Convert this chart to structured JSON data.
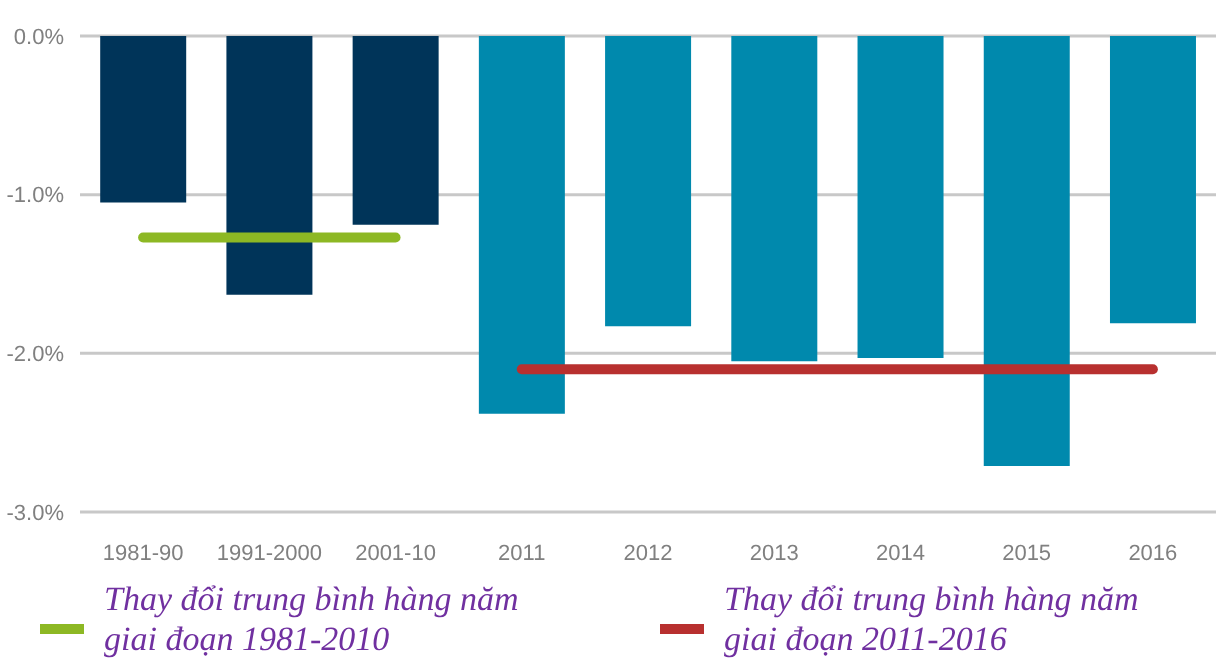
{
  "chart_data": {
    "type": "bar",
    "categories": [
      "1981-90",
      "1991-2000",
      "2001-10",
      "2011",
      "2012",
      "2013",
      "2014",
      "2015",
      "2016"
    ],
    "series": [
      {
        "colors": [
          "#003459",
          "#003459",
          "#003459",
          "#0089ad",
          "#0089ad",
          "#0089ad",
          "#0089ad",
          "#0089ad",
          "#0089ad"
        ],
        "values": [
          -1.05,
          -1.63,
          -1.19,
          -2.38,
          -1.83,
          -2.05,
          -2.03,
          -2.71,
          -1.81
        ]
      },
      {
        "type": "line",
        "name": "Thay đổi trung bình hàng năm giai đoạn 1981-2010",
        "color": "#8db824",
        "values": [
          -1.27,
          -1.27,
          -1.27,
          null,
          null,
          null,
          null,
          null,
          null
        ]
      },
      {
        "type": "line",
        "name": "Thay đổi trung bình hàng năm giai đoạn 2011-2016",
        "color": "#b8302f",
        "values": [
          null,
          null,
          null,
          -2.1,
          -2.1,
          -2.1,
          -2.1,
          -2.1,
          -2.1
        ]
      }
    ],
    "ylim": [
      -3,
      0
    ],
    "yticks": [
      {
        "value": 0,
        "label": "0.0%"
      },
      {
        "value": -1,
        "label": "-1.0%"
      },
      {
        "value": -2,
        "label": "-2.0%"
      },
      {
        "value": -3,
        "label": "-3.0%"
      }
    ],
    "grid": "y",
    "legend": "bottom",
    "marker": "none"
  }
}
